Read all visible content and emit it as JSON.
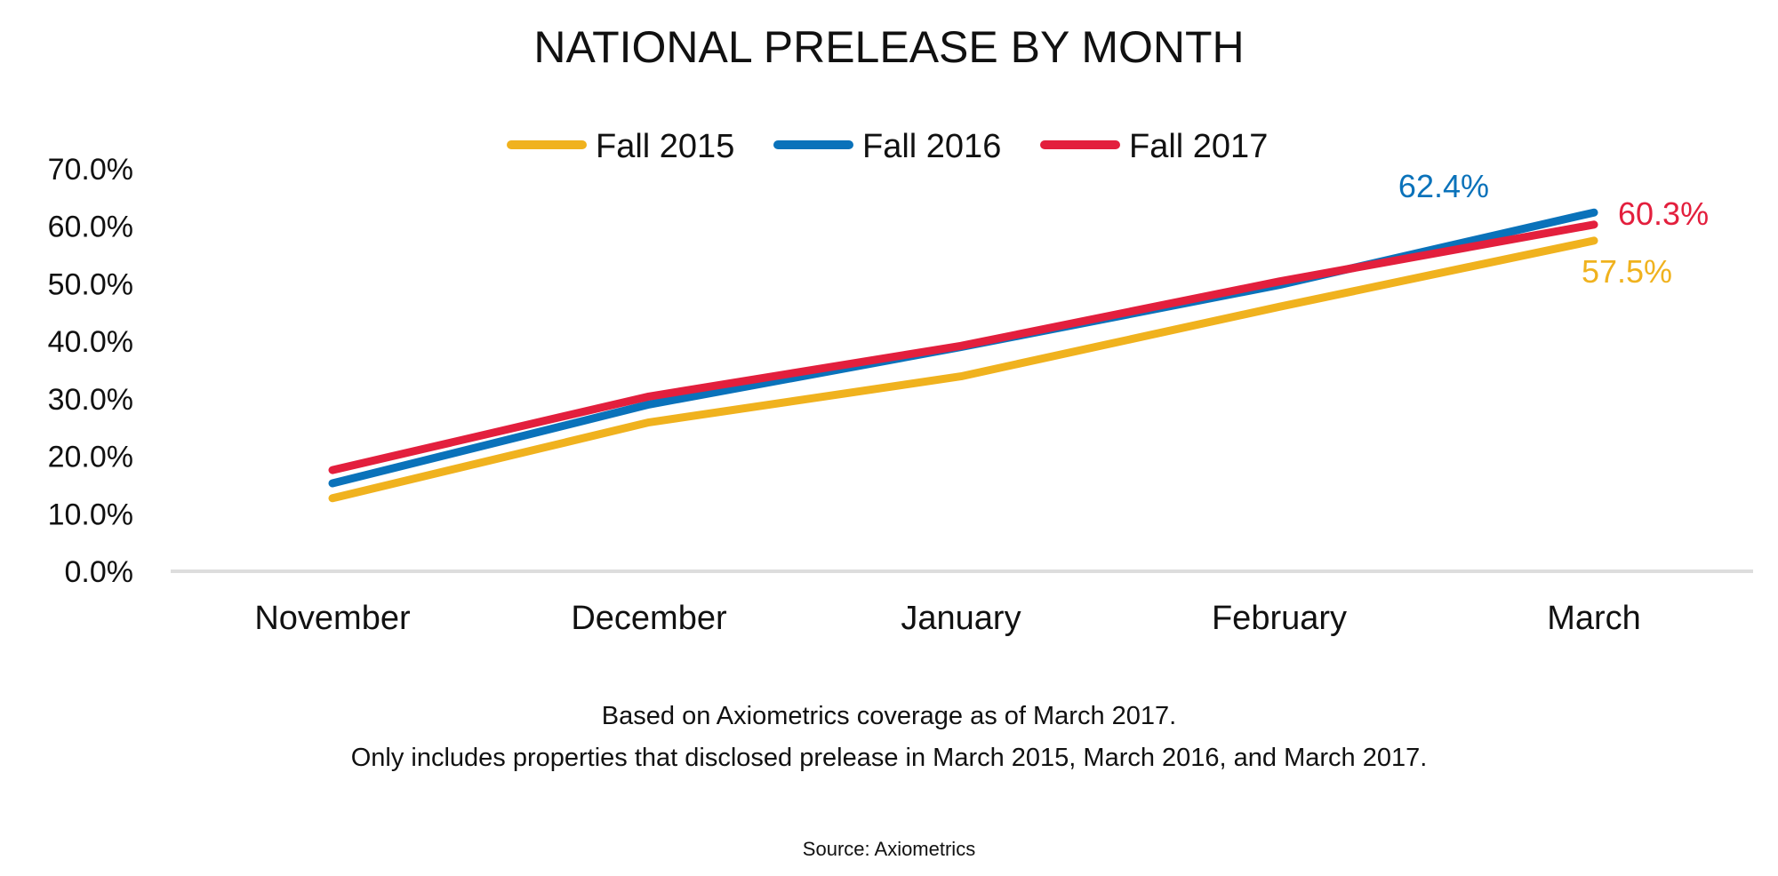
{
  "chart_data": {
    "type": "line",
    "title": "NATIONAL PRELEASE BY MONTH",
    "categories": [
      "November",
      "December",
      "January",
      "February",
      "March"
    ],
    "ylim": [
      0,
      70
    ],
    "yticks": [
      0,
      10,
      20,
      30,
      40,
      50,
      60,
      70
    ],
    "ytick_labels": [
      "0.0%",
      "10.0%",
      "20.0%",
      "30.0%",
      "40.0%",
      "50.0%",
      "60.0%",
      "70.0%"
    ],
    "legend_position": "top-center",
    "grid": false,
    "series": [
      {
        "name": "Fall 2015",
        "color": "#F0B21E",
        "values": [
          12.7,
          25.9,
          33.9,
          46.0,
          57.5
        ],
        "end_label": "57.5%"
      },
      {
        "name": "Fall 2016",
        "color": "#0A72BA",
        "values": [
          15.3,
          29.0,
          39.0,
          49.8,
          62.4
        ],
        "end_label": "62.4%"
      },
      {
        "name": "Fall 2017",
        "color": "#E31F3D",
        "values": [
          17.6,
          30.4,
          39.2,
          50.4,
          60.3
        ],
        "end_label": "60.3%"
      }
    ],
    "notes": [
      "Based on Axiometrics coverage as of March 2017.",
      "Only includes properties that disclosed prelease in March 2015, March 2016, and March 2017."
    ],
    "source": "Source: Axiometrics"
  }
}
